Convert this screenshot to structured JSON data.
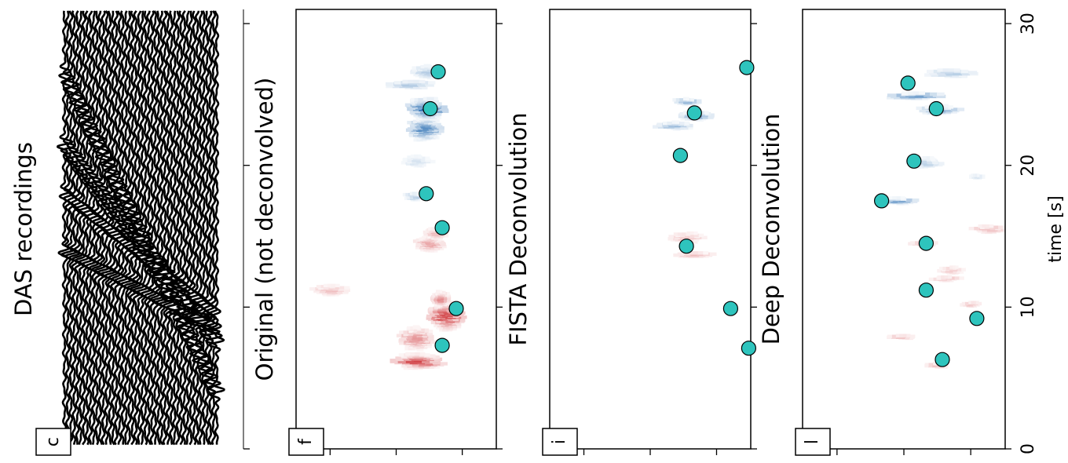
{
  "chart_data": [
    {
      "panel_letter": "c",
      "type": "line",
      "title": "DAS recordings",
      "description_kind": "wiggle traces",
      "xlim": [
        0,
        31
      ],
      "n_traces": 48,
      "line_color": "#000000"
    },
    {
      "panel_letter": "f",
      "type": "heatmap",
      "title": "Original (not deconvolved)",
      "colormap": "RdBu_r",
      "xlim": [
        0,
        31
      ],
      "blobs": [
        {
          "t": 6.2,
          "v": 0.62,
          "dt": 0.5,
          "dv": 0.12,
          "sign": 1,
          "amp": 0.9
        },
        {
          "t": 7.8,
          "v": 0.6,
          "dt": 0.8,
          "dv": 0.08,
          "sign": 1,
          "amp": 0.55
        },
        {
          "t": 9.4,
          "v": 0.75,
          "dt": 1.0,
          "dv": 0.08,
          "sign": 1,
          "amp": 0.9
        },
        {
          "t": 10.6,
          "v": 0.72,
          "dt": 0.5,
          "dv": 0.05,
          "sign": 1,
          "amp": 0.6
        },
        {
          "t": 11.2,
          "v": 0.17,
          "dt": 0.4,
          "dv": 0.09,
          "sign": 1,
          "amp": 0.3
        },
        {
          "t": 14.5,
          "v": 0.67,
          "dt": 0.6,
          "dv": 0.07,
          "sign": 1,
          "amp": 0.45
        },
        {
          "t": 15.2,
          "v": 0.7,
          "dt": 0.4,
          "dv": 0.06,
          "sign": 1,
          "amp": 0.35
        },
        {
          "t": 17.8,
          "v": 0.59,
          "dt": 0.3,
          "dv": 0.05,
          "sign": -1,
          "amp": 0.35
        },
        {
          "t": 20.3,
          "v": 0.61,
          "dt": 0.5,
          "dv": 0.07,
          "sign": -1,
          "amp": 0.2
        },
        {
          "t": 22.6,
          "v": 0.64,
          "dt": 0.8,
          "dv": 0.08,
          "sign": -1,
          "amp": 0.8
        },
        {
          "t": 24.0,
          "v": 0.65,
          "dt": 0.7,
          "dv": 0.09,
          "sign": -1,
          "amp": 1.0
        },
        {
          "t": 25.7,
          "v": 0.57,
          "dt": 0.3,
          "dv": 0.12,
          "sign": -1,
          "amp": 0.4
        },
        {
          "t": 26.6,
          "v": 0.66,
          "dt": 0.5,
          "dv": 0.08,
          "sign": -1,
          "amp": 0.35
        }
      ],
      "points": [
        [
          7.3,
          0.73
        ],
        [
          9.9,
          0.8
        ],
        [
          15.6,
          0.73
        ],
        [
          18.0,
          0.65
        ],
        [
          24.0,
          0.67
        ],
        [
          26.6,
          0.71
        ]
      ],
      "point_color": "#2ec4bd"
    },
    {
      "panel_letter": "i",
      "type": "heatmap",
      "title": "FISTA Deconvolution",
      "colormap": "RdBu_r",
      "xlim": [
        0,
        31
      ],
      "blobs": [
        {
          "t": 13.7,
          "v": 0.73,
          "dt": 0.2,
          "dv": 0.1,
          "sign": 1,
          "amp": 0.35
        },
        {
          "t": 14.9,
          "v": 0.68,
          "dt": 0.4,
          "dv": 0.08,
          "sign": 1,
          "amp": 0.3
        },
        {
          "t": 22.8,
          "v": 0.62,
          "dt": 0.25,
          "dv": 0.09,
          "sign": -1,
          "amp": 0.5
        },
        {
          "t": 23.5,
          "v": 0.72,
          "dt": 0.3,
          "dv": 0.09,
          "sign": -1,
          "amp": 0.6
        },
        {
          "t": 24.5,
          "v": 0.67,
          "dt": 0.2,
          "dv": 0.07,
          "sign": -1,
          "amp": 0.55
        }
      ],
      "points": [
        [
          7.1,
          0.99
        ],
        [
          9.9,
          0.9
        ],
        [
          14.3,
          0.68
        ],
        [
          20.7,
          0.65
        ],
        [
          23.7,
          0.72
        ],
        [
          26.9,
          0.98
        ]
      ],
      "point_color": "#2ec4bd"
    },
    {
      "panel_letter": "l",
      "type": "heatmap",
      "title": "Deep Deconvolution",
      "xlabel": "time [s]",
      "colormap": "RdBu_r",
      "xlim": [
        0,
        31
      ],
      "xticks": [
        0,
        10,
        20,
        30
      ],
      "blobs": [
        {
          "t": 5.9,
          "v": 0.67,
          "dt": 0.2,
          "dv": 0.06,
          "sign": 1,
          "amp": 0.3
        },
        {
          "t": 7.9,
          "v": 0.49,
          "dt": 0.15,
          "dv": 0.07,
          "sign": 1,
          "amp": 0.3
        },
        {
          "t": 10.2,
          "v": 0.83,
          "dt": 0.2,
          "dv": 0.05,
          "sign": 1,
          "amp": 0.3
        },
        {
          "t": 12.0,
          "v": 0.71,
          "dt": 0.2,
          "dv": 0.07,
          "sign": 1,
          "amp": 0.25
        },
        {
          "t": 12.6,
          "v": 0.73,
          "dt": 0.3,
          "dv": 0.06,
          "sign": 1,
          "amp": 0.25
        },
        {
          "t": 14.5,
          "v": 0.6,
          "dt": 0.15,
          "dv": 0.07,
          "sign": 1,
          "amp": 0.35
        },
        {
          "t": 15.5,
          "v": 0.92,
          "dt": 0.3,
          "dv": 0.08,
          "sign": 1,
          "amp": 0.35
        },
        {
          "t": 17.5,
          "v": 0.46,
          "dt": 0.2,
          "dv": 0.1,
          "sign": -1,
          "amp": 0.7
        },
        {
          "t": 19.2,
          "v": 0.86,
          "dt": 0.15,
          "dv": 0.04,
          "sign": -1,
          "amp": 0.2
        },
        {
          "t": 20.2,
          "v": 0.6,
          "dt": 0.4,
          "dv": 0.08,
          "sign": -1,
          "amp": 0.35
        },
        {
          "t": 23.9,
          "v": 0.67,
          "dt": 0.3,
          "dv": 0.1,
          "sign": -1,
          "amp": 0.55
        },
        {
          "t": 24.9,
          "v": 0.56,
          "dt": 0.2,
          "dv": 0.14,
          "sign": -1,
          "amp": 0.8
        },
        {
          "t": 26.5,
          "v": 0.72,
          "dt": 0.3,
          "dv": 0.12,
          "sign": -1,
          "amp": 0.35
        }
      ],
      "points": [
        [
          6.3,
          0.69
        ],
        [
          9.2,
          0.86
        ],
        [
          11.2,
          0.61
        ],
        [
          14.5,
          0.61
        ],
        [
          17.5,
          0.39
        ],
        [
          20.3,
          0.55
        ],
        [
          24.0,
          0.66
        ],
        [
          25.8,
          0.52
        ]
      ],
      "point_color": "#2ec4bd"
    }
  ]
}
